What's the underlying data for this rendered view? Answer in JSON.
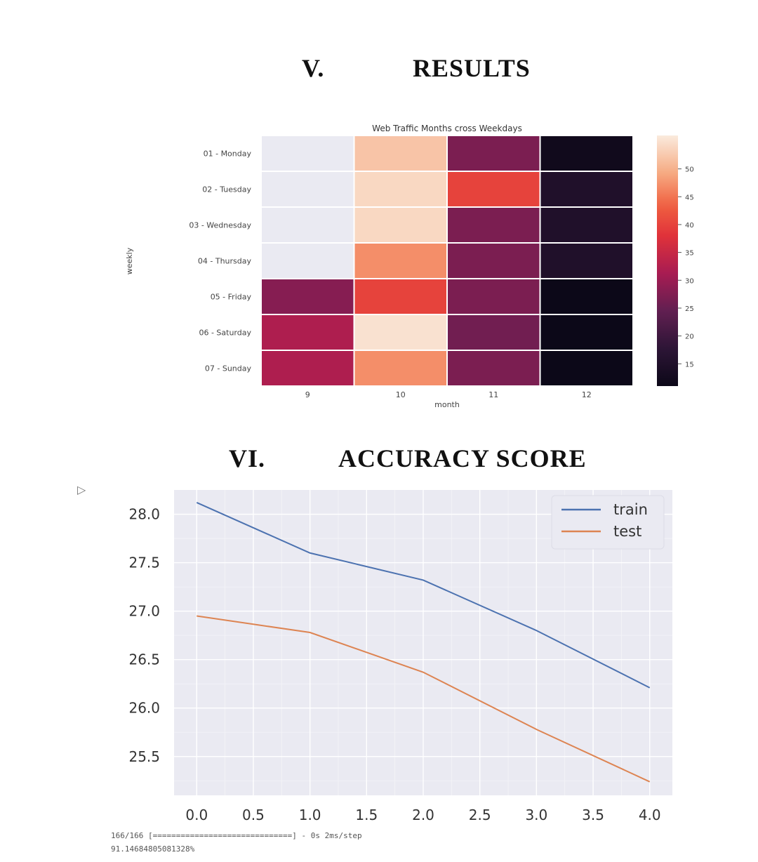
{
  "sections": [
    {
      "number": "V.",
      "title": "RESULTS"
    },
    {
      "number": "VI.",
      "title": "ACCURACY SCORE"
    }
  ],
  "heatmap": {
    "title": "Web Traffic Months cross Weekdays",
    "xlabel": "month",
    "ylabel": "weekly",
    "columns": [
      "9",
      "10",
      "11",
      "12"
    ],
    "rows": [
      "01 - Monday",
      "02 - Tuesday",
      "03 - Wednesday",
      "04 - Thursday",
      "05 - Friday",
      "06 - Saturday",
      "07 - Sunday"
    ],
    "values": [
      [
        null,
        52,
        27,
        12
      ],
      [
        null,
        54,
        40,
        15
      ],
      [
        null,
        54,
        27,
        15
      ],
      [
        null,
        47,
        27,
        15
      ],
      [
        28,
        40,
        27,
        11
      ],
      [
        32,
        55,
        26,
        11
      ],
      [
        32,
        47,
        27,
        11
      ]
    ],
    "colorbar_ticks": [
      "50",
      "45",
      "40",
      "35",
      "30",
      "25",
      "20",
      "15"
    ],
    "colorbar_range": [
      11,
      56
    ]
  },
  "chart_data": {
    "type": "line",
    "x": [
      0,
      1,
      2,
      3,
      4
    ],
    "series": [
      {
        "name": "train",
        "values": [
          28.12,
          27.6,
          27.32,
          26.8,
          26.21
        ],
        "color": "#4c72b0"
      },
      {
        "name": "test",
        "values": [
          26.95,
          26.78,
          26.37,
          25.78,
          25.24
        ],
        "color": "#dd8452"
      }
    ],
    "xticks": [
      "0.0",
      "0.5",
      "1.0",
      "1.5",
      "2.0",
      "2.5",
      "3.0",
      "3.5",
      "4.0"
    ],
    "yticks": [
      "28.0",
      "27.5",
      "27.0",
      "26.5",
      "26.0",
      "25.5"
    ],
    "xlim": [
      -0.2,
      4.2
    ],
    "ylim": [
      25.1,
      28.25
    ],
    "grid": true,
    "legend_position": "top-right"
  },
  "console": {
    "run_icon": "run-output-icon",
    "line1": "166/166 [==============================] - 0s 2ms/step",
    "line2": "91.14684805081328%"
  }
}
